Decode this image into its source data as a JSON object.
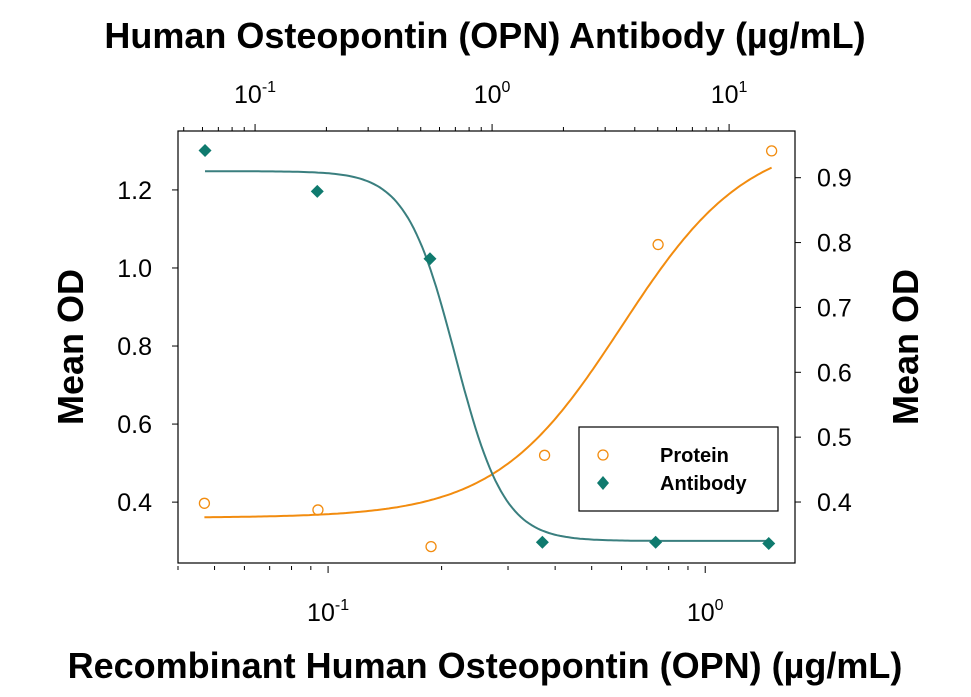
{
  "chart_data": {
    "type": "scatter",
    "title_top": "Human Osteopontin (OPN) Antibody (µg/mL)",
    "xlabel": "Recombinant Human Osteopontin (OPN) (µg/mL)",
    "ylabel_left": "Mean OD",
    "ylabel_right": "Mean OD",
    "x_bottom": {
      "scale": "log",
      "range": [
        0.04,
        1.73
      ],
      "ticks": [
        {
          "base": "10",
          "exp": "-1",
          "value": 0.1
        },
        {
          "base": "10",
          "exp": "0",
          "value": 1
        }
      ]
    },
    "x_top": {
      "scale": "log",
      "range": [
        0.0473,
        18.97
      ],
      "ticks": [
        {
          "base": "10",
          "exp": "-1",
          "value": 0.1
        },
        {
          "base": "10",
          "exp": "0",
          "value": 1
        },
        {
          "base": "10",
          "exp": "1",
          "value": 10
        }
      ]
    },
    "y_left": {
      "range": [
        0.244,
        1.351
      ],
      "ticks": [
        "0.4",
        "0.6",
        "0.8",
        "1.0",
        "1.2"
      ]
    },
    "y_right": {
      "range": [
        0.306,
        0.972
      ],
      "ticks": [
        "0.4",
        "0.5",
        "0.6",
        "0.7",
        "0.8",
        "0.9"
      ]
    },
    "legend": {
      "position": "bottom-right",
      "entries": [
        "Protein",
        "Antibody"
      ]
    },
    "colors": {
      "protein": "#f28c0f",
      "antibody": "#0f7a6e",
      "antibody_line": "#3a7f7f"
    },
    "series": [
      {
        "name": "Protein",
        "axis": "bottom-left",
        "marker": "open-circle",
        "x": [
          0.047,
          0.094,
          0.1875,
          0.375,
          0.75,
          1.5
        ],
        "y": [
          0.397,
          0.38,
          0.286,
          0.52,
          1.06,
          1.3
        ],
        "fit": {
          "bottom": 0.36,
          "top": 1.34,
          "ec50": 0.6,
          "hill": 2.6
        }
      },
      {
        "name": "Antibody",
        "axis": "top-right",
        "marker": "filled-diamond",
        "x": [
          0.0615,
          0.183,
          0.547,
          1.63,
          4.9,
          14.7
        ],
        "y": [
          0.942,
          0.879,
          0.775,
          0.338,
          0.338,
          0.336
        ],
        "fit": {
          "bottom": 0.34,
          "top": 0.91,
          "ec50": 0.7,
          "hill": 4.2
        }
      }
    ]
  }
}
